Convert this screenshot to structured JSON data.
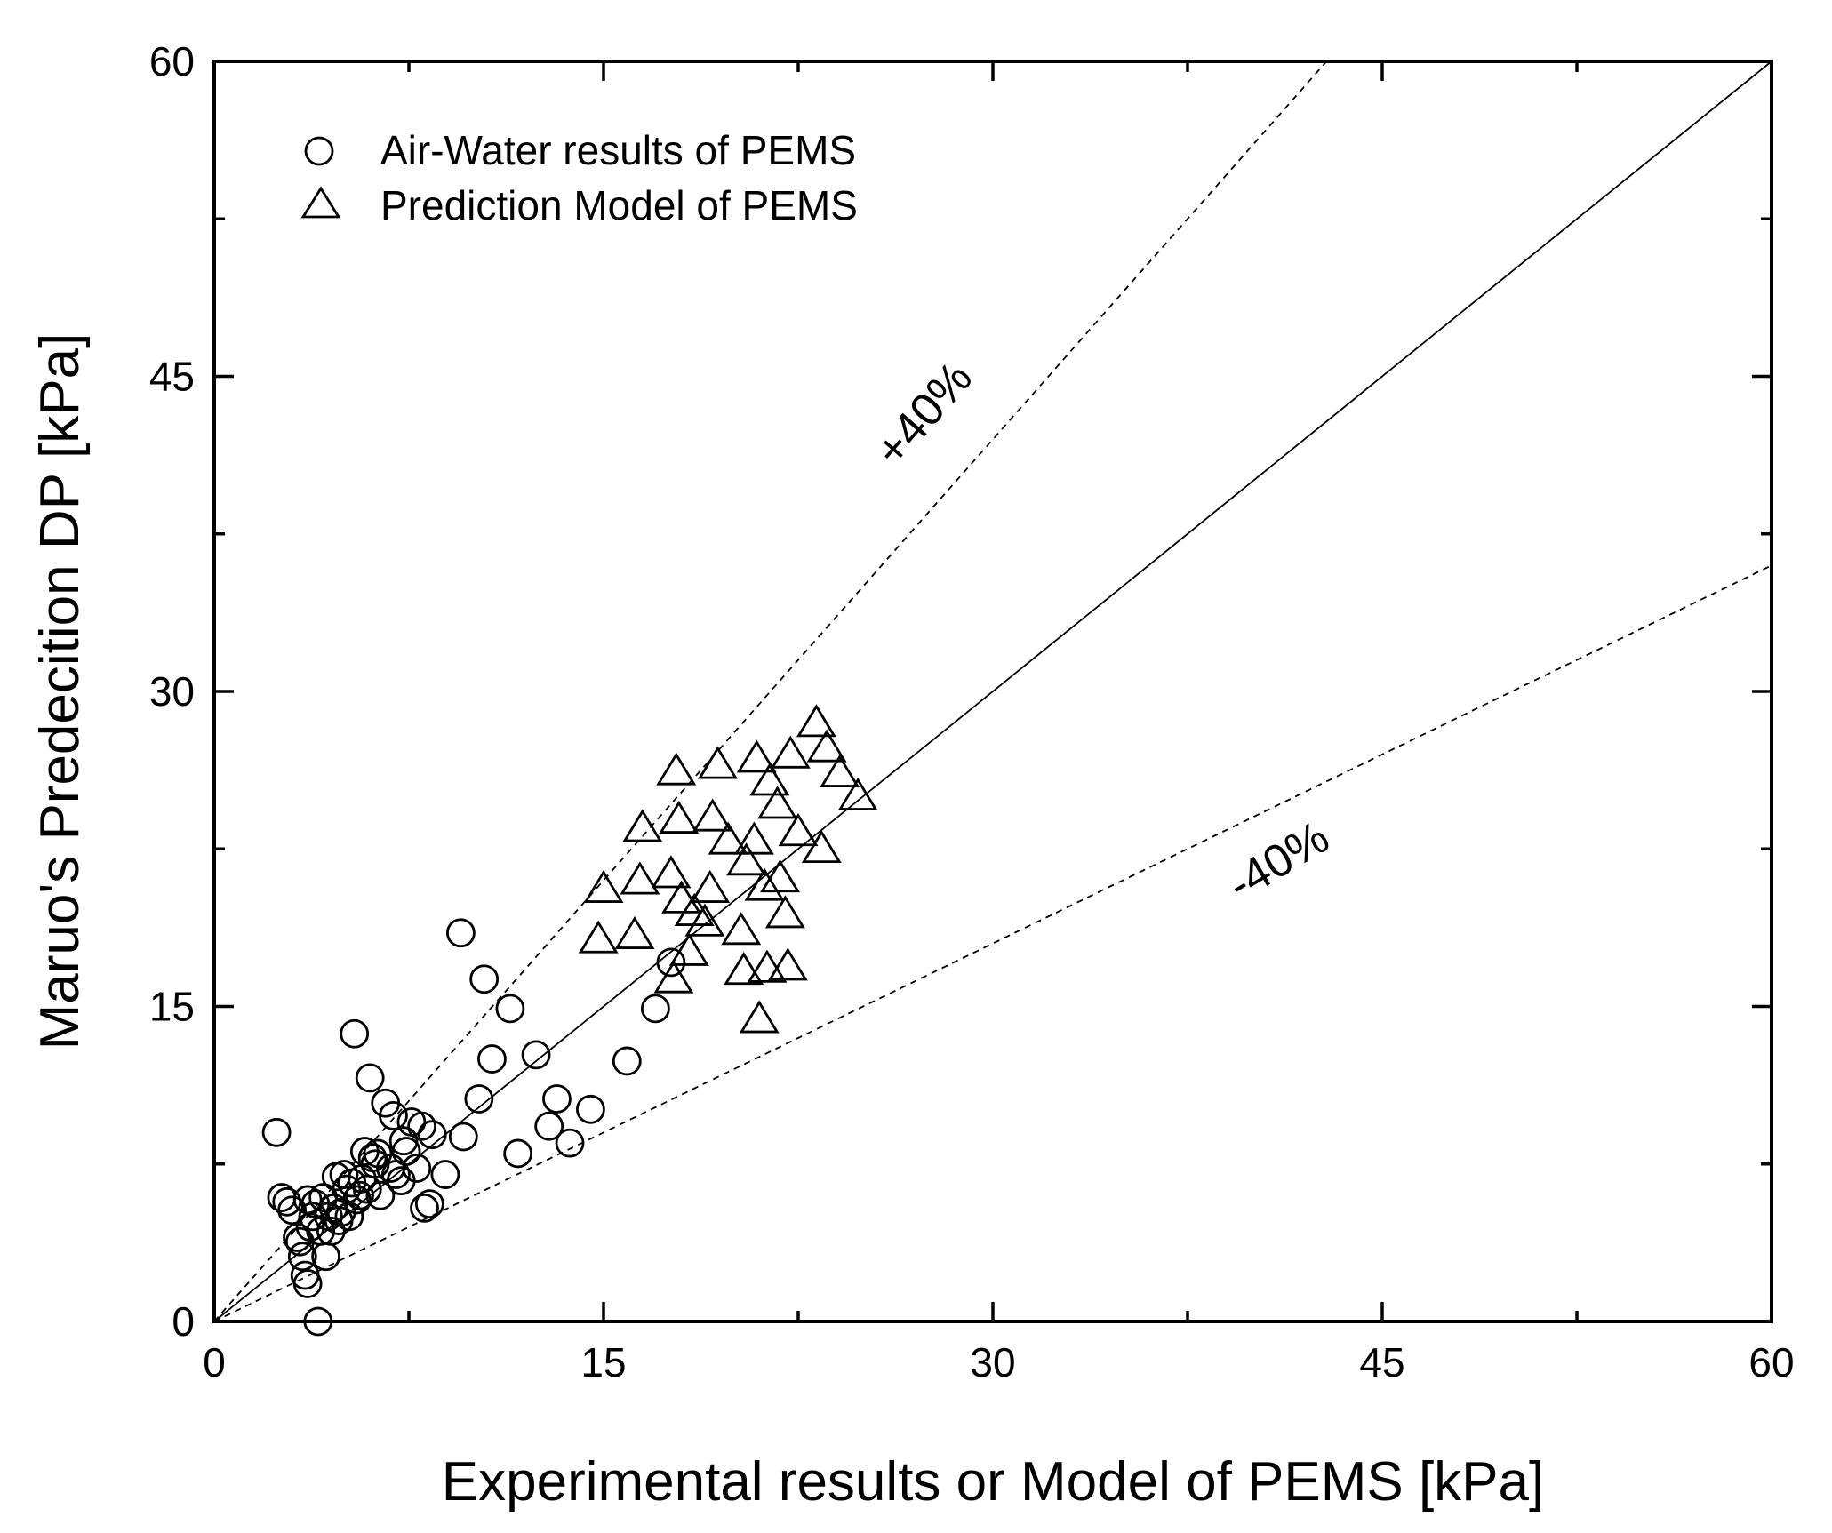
{
  "chart_data": {
    "type": "scatter",
    "title": "",
    "xlabel": "Experimental results or Model of PEMS [kPa]",
    "ylabel": "Maruo's Predecition DP [kPa]",
    "xlim": [
      0,
      60
    ],
    "ylim": [
      0,
      60
    ],
    "xticks": [
      0,
      15,
      30,
      45,
      60
    ],
    "yticks": [
      0,
      15,
      30,
      45,
      60
    ],
    "xtick_labels": [
      "0",
      "15",
      "30",
      "45",
      "60"
    ],
    "ytick_labels": [
      "0",
      "15",
      "30",
      "45",
      "60"
    ],
    "legend_position": "top-left",
    "reference_lines": [
      {
        "name": "y=x",
        "slope": 1.0,
        "style": "solid"
      },
      {
        "name": "+40%",
        "slope": 1.4,
        "style": "dashed",
        "label": "+40%"
      },
      {
        "name": "-40%",
        "slope": 0.6,
        "style": "dashed",
        "label": "-40%"
      }
    ],
    "series": [
      {
        "name": "Air-Water results of PEMS",
        "marker": "circle",
        "points": [
          [
            2.4,
            9.0
          ],
          [
            2.6,
            5.9
          ],
          [
            2.8,
            5.7
          ],
          [
            3.0,
            5.3
          ],
          [
            3.2,
            4.0
          ],
          [
            3.3,
            3.8
          ],
          [
            3.4,
            3.1
          ],
          [
            3.5,
            2.2
          ],
          [
            3.6,
            1.8
          ],
          [
            3.6,
            5.8
          ],
          [
            3.7,
            4.5
          ],
          [
            3.8,
            5.0
          ],
          [
            3.9,
            5.6
          ],
          [
            4.0,
            0.0
          ],
          [
            4.1,
            4.3
          ],
          [
            4.2,
            5.9
          ],
          [
            4.3,
            3.1
          ],
          [
            4.4,
            5.0
          ],
          [
            4.5,
            4.3
          ],
          [
            4.6,
            5.4
          ],
          [
            4.7,
            6.9
          ],
          [
            4.8,
            4.8
          ],
          [
            4.9,
            5.2
          ],
          [
            5.0,
            7.0
          ],
          [
            5.1,
            6.3
          ],
          [
            5.2,
            5.0
          ],
          [
            5.3,
            6.6
          ],
          [
            5.4,
            13.7
          ],
          [
            5.5,
            5.8
          ],
          [
            5.6,
            6.0
          ],
          [
            5.7,
            6.8
          ],
          [
            5.8,
            8.1
          ],
          [
            5.9,
            6.3
          ],
          [
            6.0,
            11.6
          ],
          [
            6.1,
            7.8
          ],
          [
            6.2,
            7.5
          ],
          [
            6.3,
            8.0
          ],
          [
            6.4,
            6.0
          ],
          [
            6.6,
            10.4
          ],
          [
            6.8,
            7.3
          ],
          [
            6.9,
            9.8
          ],
          [
            7.0,
            7.0
          ],
          [
            7.2,
            6.7
          ],
          [
            7.3,
            8.6
          ],
          [
            7.4,
            8.1
          ],
          [
            7.6,
            9.5
          ],
          [
            7.8,
            7.3
          ],
          [
            8.0,
            9.3
          ],
          [
            8.1,
            5.4
          ],
          [
            8.3,
            5.6
          ],
          [
            8.4,
            8.9
          ],
          [
            8.9,
            7.0
          ],
          [
            9.5,
            18.5
          ],
          [
            9.6,
            8.8
          ],
          [
            10.2,
            10.6
          ],
          [
            10.4,
            16.3
          ],
          [
            10.7,
            12.5
          ],
          [
            11.4,
            14.9
          ],
          [
            11.7,
            8.0
          ],
          [
            12.4,
            12.7
          ],
          [
            12.9,
            9.3
          ],
          [
            13.2,
            10.6
          ],
          [
            13.7,
            8.5
          ],
          [
            14.5,
            10.1
          ],
          [
            15.9,
            12.4
          ],
          [
            17.0,
            14.9
          ],
          [
            17.6,
            17.1
          ]
        ]
      },
      {
        "name": "Prediction Model of PEMS",
        "marker": "triangle",
        "points": [
          [
            14.8,
            18.2
          ],
          [
            15.0,
            20.6
          ],
          [
            16.2,
            18.4
          ],
          [
            16.4,
            21.0
          ],
          [
            16.5,
            23.5
          ],
          [
            17.6,
            21.3
          ],
          [
            17.7,
            16.3
          ],
          [
            17.8,
            26.2
          ],
          [
            17.9,
            23.9
          ],
          [
            18.0,
            20.1
          ],
          [
            18.3,
            17.6
          ],
          [
            18.5,
            19.5
          ],
          [
            18.9,
            19.0
          ],
          [
            19.1,
            20.6
          ],
          [
            19.2,
            24.0
          ],
          [
            19.4,
            26.5
          ],
          [
            19.8,
            22.9
          ],
          [
            20.3,
            18.6
          ],
          [
            20.4,
            16.7
          ],
          [
            20.5,
            21.9
          ],
          [
            20.8,
            22.9
          ],
          [
            20.9,
            26.8
          ],
          [
            21.0,
            14.4
          ],
          [
            21.2,
            20.7
          ],
          [
            21.3,
            16.8
          ],
          [
            21.4,
            25.7
          ],
          [
            21.7,
            24.6
          ],
          [
            21.8,
            21.1
          ],
          [
            22.0,
            19.4
          ],
          [
            22.1,
            16.9
          ],
          [
            22.2,
            27.0
          ],
          [
            22.5,
            23.3
          ],
          [
            23.2,
            28.5
          ],
          [
            23.4,
            22.5
          ],
          [
            23.6,
            27.3
          ],
          [
            24.1,
            26.1
          ],
          [
            24.8,
            25.0
          ]
        ]
      }
    ]
  },
  "legend": {
    "items": [
      {
        "label": "Air-Water results of PEMS",
        "marker": "circle"
      },
      {
        "label": "Prediction Model of PEMS",
        "marker": "triangle"
      }
    ]
  },
  "annotations": {
    "plus40": "+40%",
    "minus40": "-40%"
  }
}
